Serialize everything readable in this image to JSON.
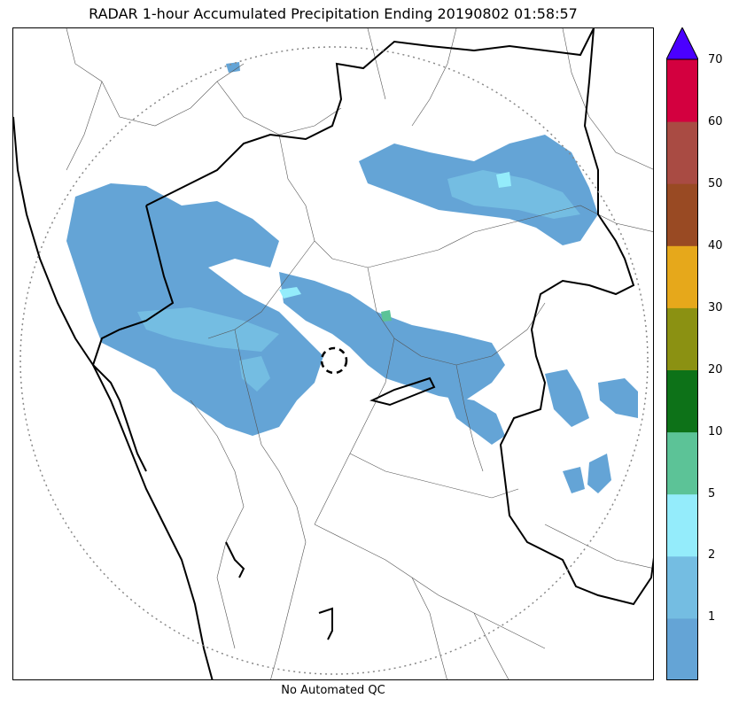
{
  "title": "RADAR 1-hour Accumulated Precipitation Ending 20190802 01:58:57",
  "footer": "No Automated QC",
  "colorbar": {
    "levels": [
      "0",
      "1",
      "2",
      "5",
      "10",
      "20",
      "30",
      "40",
      "50",
      "60",
      "70"
    ],
    "colors": [
      "#64a4d6",
      "#74bde2",
      "#94ecfb",
      "#5cc397",
      "#0d7218",
      "#8b9112",
      "#e6a81b",
      "#994a23",
      "#a94b43",
      "#d3003f"
    ],
    "over_color": "#4a00ff",
    "tick_labels": [
      "1",
      "2",
      "5",
      "10",
      "20",
      "30",
      "40",
      "50",
      "60",
      "70"
    ]
  },
  "legend_ticks": {
    "t1": "1",
    "t2": "2",
    "t3": "5",
    "t4": "10",
    "t5": "20",
    "t6": "30",
    "t7": "40",
    "t8": "50",
    "t9": "60",
    "t10": "70"
  },
  "map": {
    "range_ring": "dotted",
    "radar_site_marker": "dashed-circle",
    "precip_fill_colors": {
      "light": "#64a4d6",
      "medium": "#74bde2",
      "heavy": "#94ecfb",
      "accent": "#5cc397"
    }
  }
}
